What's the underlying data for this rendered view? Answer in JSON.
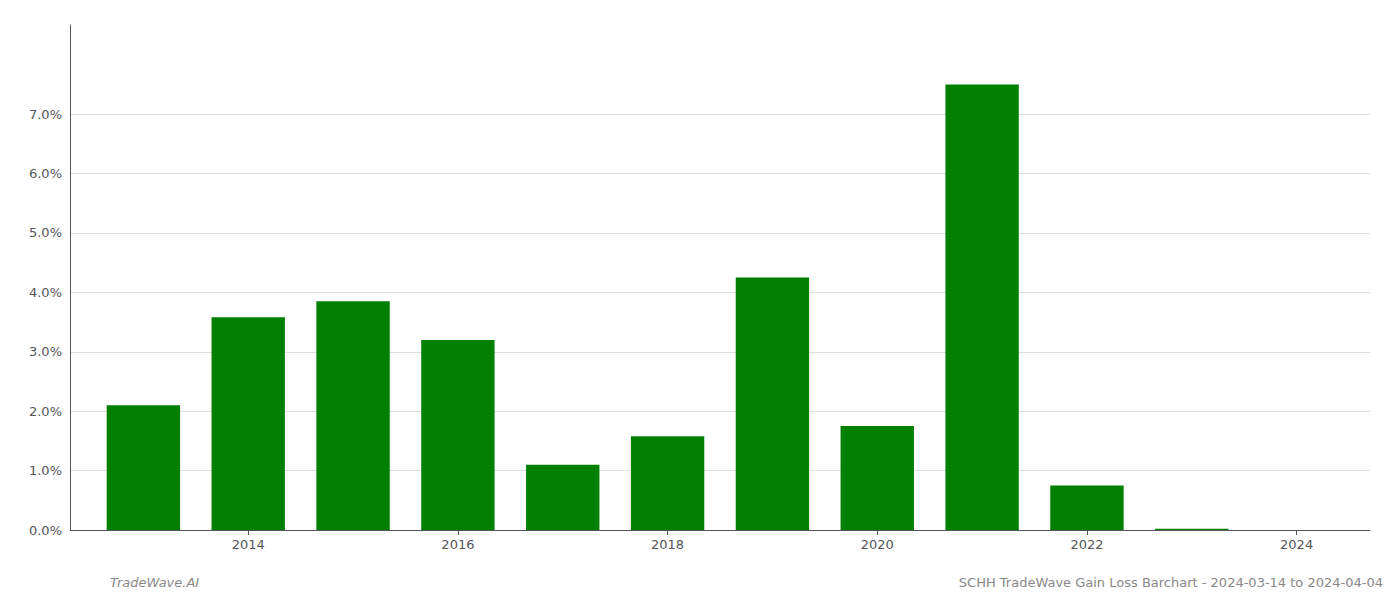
{
  "chart_data": {
    "type": "bar",
    "title": "SCHH TradeWave Gain Loss Barchart - 2024-03-14 to 2024-04-04",
    "annotations": [
      "TradeWave.AI"
    ],
    "x": [
      2013,
      2014,
      2015,
      2016,
      2017,
      2018,
      2019,
      2020,
      2021,
      2022,
      2023
    ],
    "values": [
      0.021,
      0.0358,
      0.0385,
      0.032,
      0.011,
      0.0158,
      0.0425,
      0.0175,
      0.075,
      0.0075,
      0.0002
    ],
    "color": "#008000",
    "xlim": [
      2012.3,
      2024.7
    ],
    "xticks": [
      2014,
      2016,
      2018,
      2020,
      2022,
      2024
    ],
    "ylim": [
      0,
      0.085
    ],
    "yticks": [
      {
        "value": 0.0,
        "label": "0.0%"
      },
      {
        "value": 0.01,
        "label": "1.0%"
      },
      {
        "value": 0.02,
        "label": "2.0%"
      },
      {
        "value": 0.03,
        "label": "3.0%"
      },
      {
        "value": 0.04,
        "label": "4.0%"
      },
      {
        "value": 0.05,
        "label": "5.0%"
      },
      {
        "value": 0.06,
        "label": "6.0%"
      },
      {
        "value": 0.07,
        "label": "7.0%"
      }
    ],
    "grid": true
  }
}
